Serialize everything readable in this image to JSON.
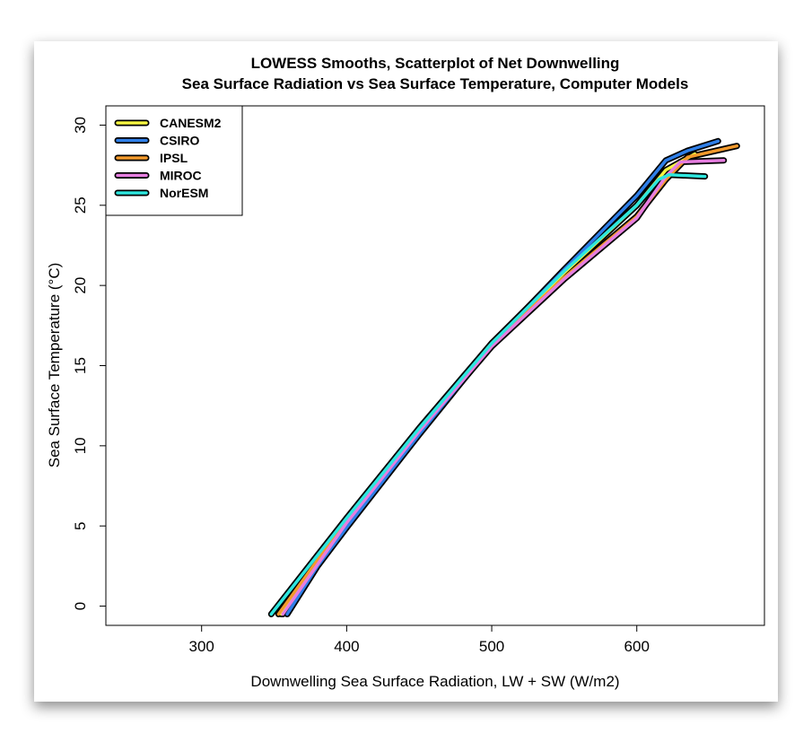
{
  "chart_data": {
    "type": "line",
    "title": [
      "LOWESS Smooths, Scatterplot of Net Downwelling",
      "Sea Surface Radiation vs Sea Surface Temperature, Computer Models"
    ],
    "xlabel": "Downwelling Sea Surface Radiation, LW + SW (W/m2)",
    "ylabel": "Sea Surface Temperature (°C)",
    "xlim": [
      234,
      688
    ],
    "ylim": [
      -1.2,
      31.2
    ],
    "xticks": [
      300,
      400,
      500,
      600
    ],
    "yticks": [
      0,
      5,
      10,
      15,
      20,
      25,
      30
    ],
    "grid": false,
    "legend_position": "top-left",
    "series": [
      {
        "name": "CANESM2",
        "color": "#f5f542",
        "points": [
          [
            355,
            -0.5
          ],
          [
            400,
            5.3
          ],
          [
            450,
            11
          ],
          [
            500,
            16.4
          ],
          [
            550,
            20.8
          ],
          [
            600,
            25
          ],
          [
            620,
            27.2
          ],
          [
            640,
            28.2
          ]
        ]
      },
      {
        "name": "CSIRO",
        "color": "#2f7fe8",
        "points": [
          [
            359,
            -0.5
          ],
          [
            380,
            2.5
          ],
          [
            400,
            4.9
          ],
          [
            450,
            10.7
          ],
          [
            500,
            16.3
          ],
          [
            550,
            21
          ],
          [
            600,
            25.6
          ],
          [
            620,
            27.8
          ],
          [
            635,
            28.4
          ],
          [
            656,
            29.0
          ]
        ]
      },
      {
        "name": "IPSL",
        "color": "#f39a2c",
        "points": [
          [
            353,
            -0.5
          ],
          [
            400,
            5.4
          ],
          [
            450,
            11
          ],
          [
            500,
            16.3
          ],
          [
            550,
            20.5
          ],
          [
            600,
            24.3
          ],
          [
            620,
            26.6
          ],
          [
            635,
            28.0
          ],
          [
            669,
            28.7
          ]
        ]
      },
      {
        "name": "MIROC",
        "color": "#e67ee0",
        "points": [
          [
            356,
            -0.5
          ],
          [
            400,
            5.2
          ],
          [
            450,
            10.9
          ],
          [
            500,
            16.2
          ],
          [
            550,
            20.4
          ],
          [
            600,
            24.2
          ],
          [
            620,
            26.8
          ],
          [
            630,
            27.7
          ],
          [
            660,
            27.8
          ]
        ]
      },
      {
        "name": "NorESM",
        "color": "#2ee6de",
        "points": [
          [
            348,
            -0.5
          ],
          [
            400,
            5.5
          ],
          [
            450,
            11.1
          ],
          [
            500,
            16.4
          ],
          [
            550,
            20.9
          ],
          [
            600,
            25
          ],
          [
            615,
            26.6
          ],
          [
            622,
            26.9
          ],
          [
            647,
            26.8
          ]
        ]
      }
    ]
  }
}
